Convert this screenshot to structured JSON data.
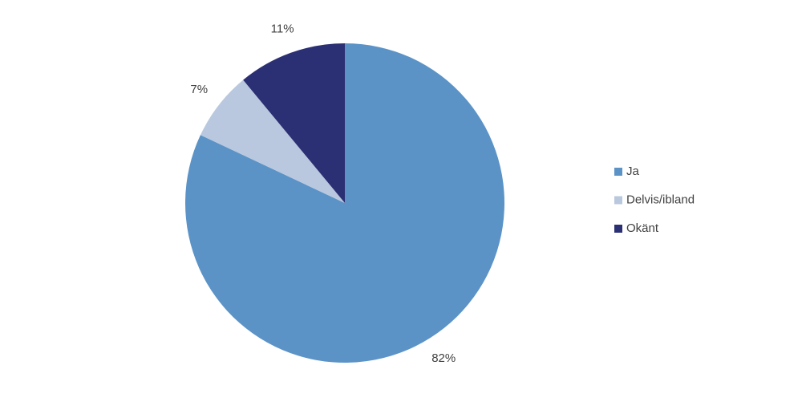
{
  "chart_data": {
    "type": "pie",
    "categories": [
      "Ja",
      "Delvis/ibland",
      "Okänt"
    ],
    "values": [
      82,
      7,
      11
    ],
    "value_labels": [
      "82%",
      "7%",
      "11%"
    ],
    "colors": [
      "#5b93c7",
      "#b9c8de",
      "#2b2f73"
    ],
    "legend": "right"
  }
}
